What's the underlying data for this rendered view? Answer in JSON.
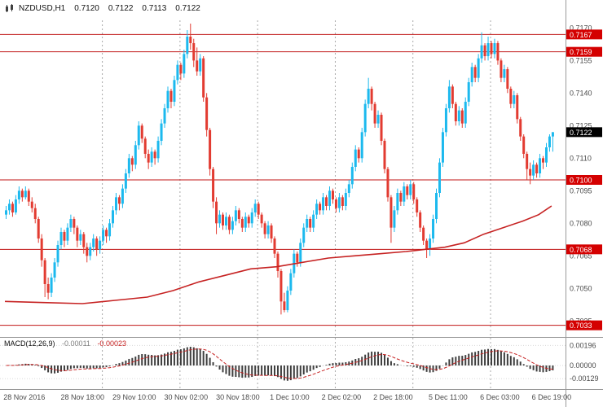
{
  "header": {
    "symbol_period": "NZDUSD,H1",
    "open": "0.7120",
    "high": "0.7122",
    "low": "0.7113",
    "close": "0.7122"
  },
  "macd_panel": {
    "label": "MACD(12,26,9)",
    "value_main": "-0.00011",
    "value_signal": "-0.00023"
  },
  "colors": {
    "background": "#ffffff",
    "up": "#1cb9ee",
    "down": "#e23b31",
    "level_line": "#c01414",
    "label_bg_level": "#d40000",
    "label_bg_current": "#000000",
    "label_text": "#ffffff",
    "ma_line": "#c62222",
    "macd_bar": "#3f3f3f",
    "macd_signal": "#c62222",
    "axis_text": "#4a4a4a",
    "separator": "#9a9a9a",
    "grid_dash": "#a8a8a8",
    "macd_grid": "#d8d8d8"
  },
  "chart_data": {
    "type": "candlestick",
    "symbol": "NZDUSD",
    "timeframe": "H1",
    "title": "NZDUSD,H1 0.7120 0.7122 0.7113 0.7122",
    "visible_price_range": [
      0.7028,
      0.7174
    ],
    "price_axis_ticks": [
      {
        "text": "0.7170",
        "value": 0.717
      },
      {
        "text": "0.7155",
        "value": 0.7155
      },
      {
        "text": "0.7140",
        "value": 0.714
      },
      {
        "text": "0.7125",
        "value": 0.7125
      },
      {
        "text": "0.7110",
        "value": 0.711
      },
      {
        "text": "0.7095",
        "value": 0.7095
      },
      {
        "text": "0.7080",
        "value": 0.708
      },
      {
        "text": "0.7065",
        "value": 0.7065
      },
      {
        "text": "0.7050",
        "value": 0.705
      },
      {
        "text": "0.7035",
        "value": 0.7035
      }
    ],
    "current_price": {
      "text": "0.7122",
      "value": 0.7122
    },
    "levels": [
      {
        "text": "0.7167",
        "value": 0.7167
      },
      {
        "text": "0.7159",
        "value": 0.7159
      },
      {
        "text": "0.7100",
        "value": 0.71
      },
      {
        "text": "0.7068",
        "value": 0.7068
      },
      {
        "text": "0.7033",
        "value": 0.7033
      }
    ],
    "time_ticks": [
      {
        "text": "28 Nov 2016",
        "idx": 6
      },
      {
        "text": "28 Nov 18:00",
        "idx": 24
      },
      {
        "text": "29 Nov 10:00",
        "idx": 40
      },
      {
        "text": "30 Nov 02:00",
        "idx": 56
      },
      {
        "text": "30 Nov 18:00",
        "idx": 72
      },
      {
        "text": "1 Dec 10:00",
        "idx": 88
      },
      {
        "text": "2 Dec 02:00",
        "idx": 104
      },
      {
        "text": "2 Dec 18:00",
        "idx": 120
      },
      {
        "text": "5 Dec 11:00",
        "idx": 137
      },
      {
        "text": "6 Dec 03:00",
        "idx": 153
      },
      {
        "text": "6 Dec 19:00",
        "idx": 169
      }
    ],
    "day_separators_idx": [
      30,
      54,
      78,
      102,
      126,
      150
    ],
    "ohlc_format": [
      "open",
      "high",
      "low",
      "close"
    ],
    "candles": [
      [
        0.7084,
        0.7088,
        0.7082,
        0.7086
      ],
      [
        0.7086,
        0.7091,
        0.7084,
        0.7089
      ],
      [
        0.7089,
        0.709,
        0.7083,
        0.7085
      ],
      [
        0.7085,
        0.7093,
        0.7084,
        0.7091
      ],
      [
        0.7091,
        0.7097,
        0.7089,
        0.7095
      ],
      [
        0.7095,
        0.7096,
        0.709,
        0.7092
      ],
      [
        0.7092,
        0.7097,
        0.7091,
        0.7095
      ],
      [
        0.7095,
        0.7096,
        0.7088,
        0.709
      ],
      [
        0.709,
        0.7092,
        0.7085,
        0.7087
      ],
      [
        0.7087,
        0.7089,
        0.708,
        0.7082
      ],
      [
        0.7082,
        0.7083,
        0.7071,
        0.7073
      ],
      [
        0.7073,
        0.7075,
        0.706,
        0.7063
      ],
      [
        0.7063,
        0.7064,
        0.7046,
        0.7052
      ],
      [
        0.7052,
        0.7055,
        0.7045,
        0.7048
      ],
      [
        0.7048,
        0.7057,
        0.7046,
        0.7055
      ],
      [
        0.7055,
        0.7064,
        0.7053,
        0.7062
      ],
      [
        0.7062,
        0.7072,
        0.706,
        0.707
      ],
      [
        0.707,
        0.7078,
        0.7068,
        0.7076
      ],
      [
        0.7076,
        0.7077,
        0.7069,
        0.7072
      ],
      [
        0.7072,
        0.708,
        0.707,
        0.7078
      ],
      [
        0.7078,
        0.7084,
        0.7076,
        0.7082
      ],
      [
        0.7082,
        0.7083,
        0.7075,
        0.7078
      ],
      [
        0.7078,
        0.7079,
        0.7069,
        0.7072
      ],
      [
        0.7072,
        0.7077,
        0.707,
        0.7075
      ],
      [
        0.7075,
        0.7076,
        0.7066,
        0.7069
      ],
      [
        0.7069,
        0.7071,
        0.7062,
        0.7065
      ],
      [
        0.7065,
        0.7071,
        0.7063,
        0.7069
      ],
      [
        0.7069,
        0.7075,
        0.7067,
        0.7073
      ],
      [
        0.7073,
        0.7074,
        0.7065,
        0.7068
      ],
      [
        0.7068,
        0.7074,
        0.7066,
        0.7072
      ],
      [
        0.7072,
        0.7079,
        0.707,
        0.7077
      ],
      [
        0.7077,
        0.7078,
        0.7071,
        0.7074
      ],
      [
        0.7074,
        0.7082,
        0.7072,
        0.708
      ],
      [
        0.708,
        0.7088,
        0.7078,
        0.7086
      ],
      [
        0.7086,
        0.7094,
        0.7084,
        0.7092
      ],
      [
        0.7092,
        0.7093,
        0.7086,
        0.7089
      ],
      [
        0.7089,
        0.7098,
        0.7087,
        0.7096
      ],
      [
        0.7096,
        0.7105,
        0.7094,
        0.7103
      ],
      [
        0.7103,
        0.7112,
        0.7101,
        0.711
      ],
      [
        0.711,
        0.7111,
        0.7104,
        0.7107
      ],
      [
        0.7107,
        0.7118,
        0.7105,
        0.7116
      ],
      [
        0.7116,
        0.7127,
        0.7114,
        0.7125
      ],
      [
        0.7125,
        0.7126,
        0.7117,
        0.7119
      ],
      [
        0.7119,
        0.712,
        0.711,
        0.7112
      ],
      [
        0.7112,
        0.7114,
        0.7105,
        0.7108
      ],
      [
        0.7108,
        0.7115,
        0.7106,
        0.7113
      ],
      [
        0.7113,
        0.7114,
        0.7107,
        0.711
      ],
      [
        0.711,
        0.712,
        0.7108,
        0.7118
      ],
      [
        0.7118,
        0.7128,
        0.7116,
        0.7126
      ],
      [
        0.7126,
        0.7135,
        0.7124,
        0.7133
      ],
      [
        0.7133,
        0.7143,
        0.7131,
        0.7141
      ],
      [
        0.7141,
        0.7142,
        0.7133,
        0.7136
      ],
      [
        0.7136,
        0.7148,
        0.7134,
        0.7146
      ],
      [
        0.7146,
        0.7155,
        0.7144,
        0.7153
      ],
      [
        0.7153,
        0.7154,
        0.7146,
        0.7149
      ],
      [
        0.7149,
        0.716,
        0.7147,
        0.7158
      ],
      [
        0.7158,
        0.7169,
        0.7156,
        0.7166
      ],
      [
        0.7166,
        0.7172,
        0.716,
        0.7163
      ],
      [
        0.7163,
        0.7165,
        0.7152,
        0.7155
      ],
      [
        0.7155,
        0.7161,
        0.7148,
        0.715
      ],
      [
        0.715,
        0.7158,
        0.7148,
        0.7156
      ],
      [
        0.7156,
        0.7157,
        0.7136,
        0.7138
      ],
      [
        0.7138,
        0.714,
        0.712,
        0.7123
      ],
      [
        0.7123,
        0.7124,
        0.7102,
        0.7105
      ],
      [
        0.7105,
        0.7106,
        0.7087,
        0.709
      ],
      [
        0.709,
        0.7092,
        0.7075,
        0.708
      ],
      [
        0.708,
        0.7086,
        0.7078,
        0.7084
      ],
      [
        0.7084,
        0.7085,
        0.7077,
        0.7079
      ],
      [
        0.7079,
        0.7085,
        0.7077,
        0.7083
      ],
      [
        0.7083,
        0.7084,
        0.7075,
        0.7077
      ],
      [
        0.7077,
        0.7083,
        0.7075,
        0.7081
      ],
      [
        0.7081,
        0.7088,
        0.7079,
        0.7086
      ],
      [
        0.7086,
        0.7087,
        0.708,
        0.7082
      ],
      [
        0.7082,
        0.7083,
        0.7076,
        0.7078
      ],
      [
        0.7078,
        0.7085,
        0.7076,
        0.7083
      ],
      [
        0.7083,
        0.7084,
        0.7078,
        0.708
      ],
      [
        0.708,
        0.7087,
        0.7078,
        0.7085
      ],
      [
        0.7085,
        0.7091,
        0.7083,
        0.7089
      ],
      [
        0.7089,
        0.709,
        0.7082,
        0.7084
      ],
      [
        0.7084,
        0.7085,
        0.7078,
        0.708
      ],
      [
        0.708,
        0.7081,
        0.7073,
        0.7075
      ],
      [
        0.7075,
        0.7081,
        0.7073,
        0.7079
      ],
      [
        0.7079,
        0.708,
        0.7071,
        0.7073
      ],
      [
        0.7073,
        0.7074,
        0.7064,
        0.7066
      ],
      [
        0.7066,
        0.7067,
        0.7055,
        0.7058
      ],
      [
        0.7058,
        0.7059,
        0.7038,
        0.7044
      ],
      [
        0.7044,
        0.7048,
        0.7039,
        0.704
      ],
      [
        0.704,
        0.7051,
        0.7039,
        0.7049
      ],
      [
        0.7049,
        0.7059,
        0.7047,
        0.7057
      ],
      [
        0.7057,
        0.7068,
        0.7055,
        0.7066
      ],
      [
        0.7066,
        0.7067,
        0.706,
        0.7062
      ],
      [
        0.7062,
        0.7073,
        0.706,
        0.7071
      ],
      [
        0.7071,
        0.708,
        0.7069,
        0.7078
      ],
      [
        0.7078,
        0.7084,
        0.7076,
        0.7082
      ],
      [
        0.7082,
        0.7083,
        0.7076,
        0.7078
      ],
      [
        0.7078,
        0.7086,
        0.7076,
        0.7084
      ],
      [
        0.7084,
        0.7091,
        0.7082,
        0.7089
      ],
      [
        0.7089,
        0.709,
        0.7084,
        0.7086
      ],
      [
        0.7086,
        0.7094,
        0.7084,
        0.7092
      ],
      [
        0.7092,
        0.7093,
        0.7086,
        0.7088
      ],
      [
        0.7088,
        0.7097,
        0.7086,
        0.7095
      ],
      [
        0.7095,
        0.7096,
        0.7089,
        0.7091
      ],
      [
        0.7091,
        0.7092,
        0.7085,
        0.7087
      ],
      [
        0.7087,
        0.7094,
        0.7085,
        0.7092
      ],
      [
        0.7092,
        0.7093,
        0.7086,
        0.7088
      ],
      [
        0.7088,
        0.7096,
        0.7086,
        0.7094
      ],
      [
        0.7094,
        0.71,
        0.7092,
        0.7098
      ],
      [
        0.7098,
        0.7108,
        0.7096,
        0.7106
      ],
      [
        0.7106,
        0.7116,
        0.7104,
        0.7114
      ],
      [
        0.7114,
        0.7115,
        0.7108,
        0.711
      ],
      [
        0.711,
        0.7124,
        0.7108,
        0.7122
      ],
      [
        0.7122,
        0.7137,
        0.712,
        0.7135
      ],
      [
        0.7135,
        0.7147,
        0.7133,
        0.7142
      ],
      [
        0.7142,
        0.7143,
        0.7132,
        0.7135
      ],
      [
        0.7135,
        0.7136,
        0.7124,
        0.7126
      ],
      [
        0.7126,
        0.7132,
        0.7124,
        0.713
      ],
      [
        0.713,
        0.7131,
        0.7116,
        0.7118
      ],
      [
        0.7118,
        0.7119,
        0.7103,
        0.7105
      ],
      [
        0.7105,
        0.7106,
        0.709,
        0.7092
      ],
      [
        0.7092,
        0.7093,
        0.7071,
        0.7078
      ],
      [
        0.7078,
        0.7088,
        0.7076,
        0.7086
      ],
      [
        0.7086,
        0.7096,
        0.7084,
        0.7094
      ],
      [
        0.7094,
        0.7095,
        0.7088,
        0.709
      ],
      [
        0.709,
        0.7099,
        0.7088,
        0.7097
      ],
      [
        0.7097,
        0.7098,
        0.7091,
        0.7093
      ],
      [
        0.7093,
        0.71,
        0.7091,
        0.7098
      ],
      [
        0.7098,
        0.7099,
        0.7089,
        0.7091
      ],
      [
        0.7091,
        0.7092,
        0.7083,
        0.7085
      ],
      [
        0.7085,
        0.7086,
        0.7076,
        0.7078
      ],
      [
        0.7078,
        0.7079,
        0.707,
        0.7072
      ],
      [
        0.7072,
        0.7073,
        0.7064,
        0.7068
      ],
      [
        0.7068,
        0.7075,
        0.7065,
        0.7073
      ],
      [
        0.7073,
        0.7084,
        0.7071,
        0.7082
      ],
      [
        0.7082,
        0.7096,
        0.708,
        0.7094
      ],
      [
        0.7094,
        0.711,
        0.7092,
        0.7108
      ],
      [
        0.7108,
        0.7124,
        0.7106,
        0.7122
      ],
      [
        0.7122,
        0.7135,
        0.712,
        0.7133
      ],
      [
        0.7133,
        0.7146,
        0.7131,
        0.7143
      ],
      [
        0.7143,
        0.7144,
        0.7133,
        0.7135
      ],
      [
        0.7135,
        0.7136,
        0.7125,
        0.7127
      ],
      [
        0.7127,
        0.7134,
        0.7125,
        0.7132
      ],
      [
        0.7132,
        0.7133,
        0.7124,
        0.7126
      ],
      [
        0.7126,
        0.7138,
        0.7124,
        0.7136
      ],
      [
        0.7136,
        0.7147,
        0.7134,
        0.7145
      ],
      [
        0.7145,
        0.7154,
        0.7143,
        0.7152
      ],
      [
        0.7152,
        0.7153,
        0.7145,
        0.7147
      ],
      [
        0.7147,
        0.7158,
        0.7145,
        0.7156
      ],
      [
        0.7156,
        0.7168,
        0.7154,
        0.7162
      ],
      [
        0.7162,
        0.7163,
        0.7155,
        0.7157
      ],
      [
        0.7157,
        0.7166,
        0.7155,
        0.7163
      ],
      [
        0.7163,
        0.7164,
        0.7156,
        0.7158
      ],
      [
        0.7158,
        0.7165,
        0.7156,
        0.7163
      ],
      [
        0.7163,
        0.7164,
        0.7153,
        0.7155
      ],
      [
        0.7155,
        0.7156,
        0.7145,
        0.7147
      ],
      [
        0.7147,
        0.7153,
        0.7145,
        0.7151
      ],
      [
        0.7151,
        0.7152,
        0.714,
        0.7142
      ],
      [
        0.7142,
        0.7143,
        0.7133,
        0.7135
      ],
      [
        0.7135,
        0.7141,
        0.7133,
        0.7139
      ],
      [
        0.7139,
        0.714,
        0.7126,
        0.7128
      ],
      [
        0.7128,
        0.7129,
        0.7118,
        0.712
      ],
      [
        0.712,
        0.7121,
        0.711,
        0.7112
      ],
      [
        0.7112,
        0.7113,
        0.71,
        0.7105
      ],
      [
        0.7105,
        0.7108,
        0.7098,
        0.7102
      ],
      [
        0.7102,
        0.7109,
        0.71,
        0.7107
      ],
      [
        0.7107,
        0.7108,
        0.7101,
        0.7103
      ],
      [
        0.7103,
        0.7112,
        0.7101,
        0.711
      ],
      [
        0.711,
        0.7111,
        0.7105,
        0.7108
      ],
      [
        0.7108,
        0.7117,
        0.7106,
        0.7115
      ],
      [
        0.7115,
        0.7121,
        0.7113,
        0.712
      ],
      [
        0.712,
        0.7122,
        0.7113,
        0.7122
      ]
    ],
    "ma_line": {
      "name": "moving-average",
      "points": [
        [
          0,
          0.7044
        ],
        [
          12,
          0.70435
        ],
        [
          24,
          0.7043
        ],
        [
          34,
          0.70445
        ],
        [
          44,
          0.7046
        ],
        [
          52,
          0.7049
        ],
        [
          60,
          0.7053
        ],
        [
          68,
          0.7056
        ],
        [
          76,
          0.7059
        ],
        [
          84,
          0.706
        ],
        [
          92,
          0.7062
        ],
        [
          100,
          0.7064
        ],
        [
          108,
          0.7065
        ],
        [
          116,
          0.7066
        ],
        [
          124,
          0.7067
        ],
        [
          130,
          0.7068
        ],
        [
          136,
          0.7069
        ],
        [
          142,
          0.7071
        ],
        [
          148,
          0.7075
        ],
        [
          154,
          0.7078
        ],
        [
          160,
          0.7081
        ],
        [
          165,
          0.7084
        ],
        [
          169,
          0.7088
        ]
      ]
    },
    "macd": {
      "params": [
        12,
        26,
        9
      ],
      "current_main": -0.00011,
      "current_signal": -0.00023,
      "axis_ticks": [
        {
          "text": "0.00196",
          "value": 0.00196
        },
        {
          "text": "0.00000",
          "value": 0.0
        },
        {
          "text": "-0.00129",
          "value": -0.00129
        }
      ],
      "range": [
        -0.00129,
        0.00196
      ]
    }
  }
}
